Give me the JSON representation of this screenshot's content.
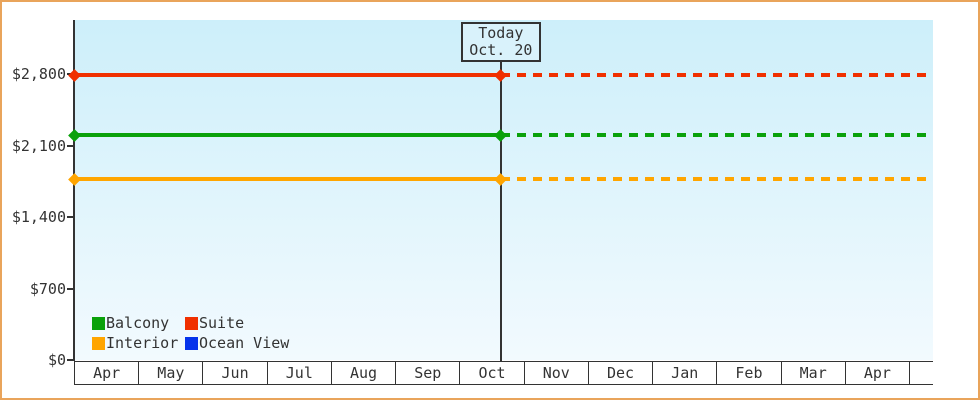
{
  "chart": {
    "frame_border_color": "#E9A45B",
    "axis_color": "#333333",
    "text_color": "#333333",
    "plot_bg_top": "#CDEFFA",
    "plot_bg_bottom": "#F2FAFE",
    "today_box_bg": "#D9F2FB"
  },
  "chart_data": {
    "type": "line",
    "title": "",
    "xlabel": "",
    "ylabel": "",
    "x_categories": [
      "Apr",
      "May",
      "Jun",
      "Jul",
      "Aug",
      "Sep",
      "Oct",
      "Nov",
      "Dec",
      "Jan",
      "Feb",
      "Mar",
      "Apr"
    ],
    "y_ticks": [
      {
        "value": 0,
        "label": "$0"
      },
      {
        "value": 700,
        "label": "$700"
      },
      {
        "value": 1400,
        "label": "$1,400"
      },
      {
        "value": 2100,
        "label": "$2,100"
      },
      {
        "value": 2800,
        "label": "$2,800"
      }
    ],
    "ylim": [
      0,
      3330
    ],
    "grid": false,
    "legend_position": "inside-bottom-left",
    "today": {
      "label": "Today",
      "date": "Oct. 20",
      "month_index": 6,
      "day": 20
    },
    "line_style_note": "solid before today, dashed after today, diamond markers at series start and at today",
    "series": [
      {
        "name": "Balcony",
        "color": "#0AA10A",
        "value": 2200
      },
      {
        "name": "Suite",
        "color": "#F03000",
        "value": 2790
      },
      {
        "name": "Interior",
        "color": "#FFA500",
        "value": 1770
      },
      {
        "name": "Ocean View",
        "color": "#0533EB",
        "value": null
      }
    ]
  }
}
